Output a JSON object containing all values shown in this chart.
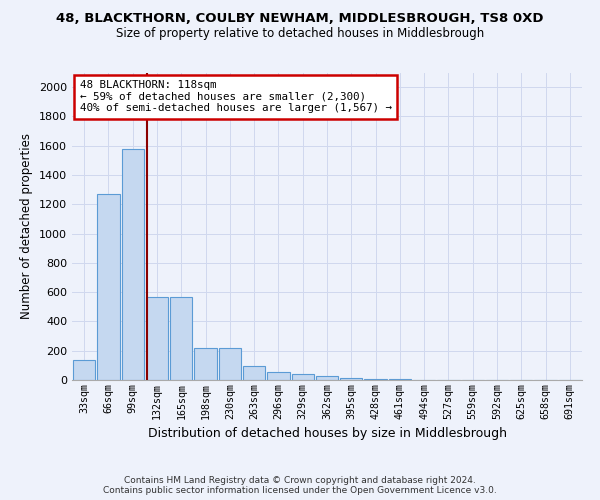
{
  "title_line1": "48, BLACKTHORN, COULBY NEWHAM, MIDDLESBROUGH, TS8 0XD",
  "title_line2": "Size of property relative to detached houses in Middlesbrough",
  "xlabel": "Distribution of detached houses by size in Middlesbrough",
  "ylabel": "Number of detached properties",
  "bar_labels": [
    "33sqm",
    "66sqm",
    "99sqm",
    "132sqm",
    "165sqm",
    "198sqm",
    "230sqm",
    "263sqm",
    "296sqm",
    "329sqm",
    "362sqm",
    "395sqm",
    "428sqm",
    "461sqm",
    "494sqm",
    "527sqm",
    "559sqm",
    "592sqm",
    "625sqm",
    "658sqm",
    "691sqm"
  ],
  "bar_values": [
    140,
    1270,
    1580,
    570,
    570,
    220,
    220,
    95,
    55,
    40,
    25,
    15,
    8,
    5,
    3,
    2,
    1,
    1,
    1,
    1,
    0
  ],
  "bar_color": "#c5d8f0",
  "bar_edge_color": "#5b9bd5",
  "vline_pos": 2.58,
  "vline_color": "#8b0000",
  "annotation_title": "48 BLACKTHORN: 118sqm",
  "annotation_line1": "← 59% of detached houses are smaller (2,300)",
  "annotation_line2": "40% of semi-detached houses are larger (1,567) →",
  "annotation_box_color": "#ffffff",
  "annotation_box_edge": "#cc0000",
  "ylim": [
    0,
    2100
  ],
  "yticks": [
    0,
    200,
    400,
    600,
    800,
    1000,
    1200,
    1400,
    1600,
    1800,
    2000
  ],
  "footer_line1": "Contains HM Land Registry data © Crown copyright and database right 2024.",
  "footer_line2": "Contains public sector information licensed under the Open Government Licence v3.0.",
  "bg_color": "#eef2fb",
  "grid_color": "#d0d8ee"
}
